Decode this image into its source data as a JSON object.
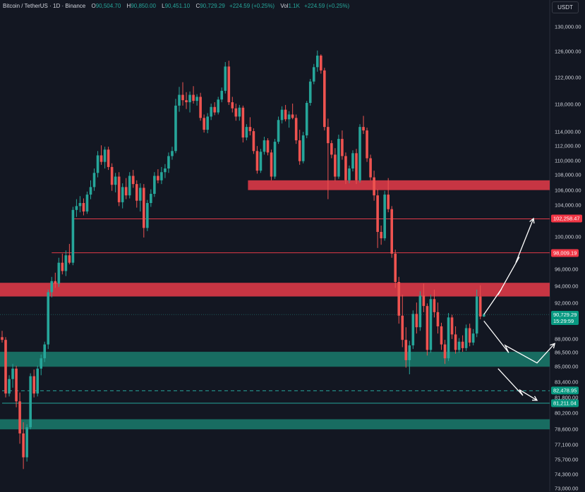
{
  "header": {
    "symbol": "Bitcoin / TetherUS · 1D · Binance",
    "o_label": "O",
    "o_value": "90,504.70",
    "h_label": "H",
    "h_value": "90,850.00",
    "l_label": "L",
    "l_value": "90,451.10",
    "c_label": "C",
    "c_value": "90,729.29",
    "change": "+224.59 (+0.25%)",
    "vol_label": "Vol",
    "vol_value": "1.1K",
    "vol_change": "+224.59 (+0.25%)"
  },
  "currency_button": "USDT",
  "colors": {
    "up": "#26a69a",
    "down": "#ef5350",
    "resistance": "#e03a48",
    "support": "#1b8a77",
    "background": "#131722"
  },
  "chart_data": {
    "type": "candlestick",
    "y_axis": {
      "ticks": [
        {
          "value": 130000,
          "label": "130,000.00"
        },
        {
          "value": 126000,
          "label": "126,000.00"
        },
        {
          "value": 122000,
          "label": "122,000.00"
        },
        {
          "value": 118000,
          "label": "118,000.00"
        },
        {
          "value": 114000,
          "label": "114,000.00"
        },
        {
          "value": 112000,
          "label": "112,000.00"
        },
        {
          "value": 110000,
          "label": "110,000.00"
        },
        {
          "value": 108000,
          "label": "108,000.00"
        },
        {
          "value": 106000,
          "label": "106,000.00"
        },
        {
          "value": 104000,
          "label": "104,000.00"
        },
        {
          "value": 100000,
          "label": "100,000.00"
        },
        {
          "value": 96000,
          "label": "96,000.00"
        },
        {
          "value": 94000,
          "label": "94,000.00"
        },
        {
          "value": 92000,
          "label": "92,000.00"
        },
        {
          "value": 88000,
          "label": "88,000.00"
        },
        {
          "value": 86500,
          "label": "86,500.00"
        },
        {
          "value": 85000,
          "label": "85,000.00"
        },
        {
          "value": 83400,
          "label": "83,400.00"
        },
        {
          "value": 81800,
          "label": "81,800.00"
        },
        {
          "value": 80200,
          "label": "80,200.00"
        },
        {
          "value": 78600,
          "label": "78,600.00"
        },
        {
          "value": 77100,
          "label": "77,100.00"
        },
        {
          "value": 75700,
          "label": "75,700.00"
        },
        {
          "value": 74300,
          "label": "74,300.00"
        },
        {
          "value": 73000,
          "label": "73,000.00"
        }
      ]
    },
    "price_labels": [
      {
        "value": 102258.47,
        "label": "102,258.47",
        "color": "#f23645"
      },
      {
        "value": 98009.19,
        "label": "98,009.19",
        "color": "#f23645"
      },
      {
        "value": 90729.29,
        "label": "90,729.29",
        "sublabel": "15:29:59",
        "color": "#089981"
      },
      {
        "value": 82478.95,
        "label": "82,478.95",
        "color": "#089981"
      },
      {
        "value": 81211.04,
        "label": "81,211.04",
        "color": "#089981"
      }
    ],
    "zones": [
      {
        "kind": "resistance",
        "from_candle": 70,
        "low": 106000,
        "high": 107300
      },
      {
        "kind": "resistance",
        "from_candle": 0,
        "low": 92800,
        "high": 94400
      },
      {
        "kind": "support",
        "from_candle": 0,
        "low": 85000,
        "high": 86600
      },
      {
        "kind": "support",
        "from_candle": 0,
        "low": 78600,
        "high": 79600
      }
    ],
    "horizontal_lines": [
      {
        "value": 102258.47,
        "from_candle": 20,
        "style": "solid",
        "color": "#e03a48"
      },
      {
        "value": 98009.19,
        "from_candle": 14,
        "style": "solid",
        "color": "#e03a48"
      },
      {
        "value": 82478.95,
        "from_candle": 0,
        "style": "dashed",
        "color": "#26a69a"
      },
      {
        "value": 81211.04,
        "from_candle": 0,
        "style": "solid",
        "color": "#26a69a"
      }
    ],
    "projection_paths": [
      [
        [
          136,
          90729
        ],
        [
          141,
          93700
        ],
        [
          140,
          93000
        ],
        [
          146,
          97500
        ],
        [
          145,
          96800
        ],
        [
          150,
          102300
        ]
      ],
      [
        [
          136,
          90000
        ],
        [
          143,
          86500
        ],
        [
          142,
          87300
        ],
        [
          151,
          85400
        ],
        [
          156,
          87500
        ]
      ],
      [
        [
          140,
          84800
        ],
        [
          147,
          82000
        ],
        [
          146,
          82600
        ],
        [
          151,
          81500
        ]
      ]
    ],
    "candles": [
      [
        88200,
        88900,
        87600,
        87900
      ],
      [
        87900,
        88200,
        81800,
        82200
      ],
      [
        82200,
        84100,
        81900,
        83700
      ],
      [
        83700,
        85300,
        82800,
        84800
      ],
      [
        84800,
        85100,
        80800,
        81400
      ],
      [
        81400,
        82300,
        77200,
        78200
      ],
      [
        78200,
        79300,
        74800,
        75900
      ],
      [
        75900,
        79100,
        75500,
        78800
      ],
      [
        78800,
        84300,
        78600,
        84000
      ],
      [
        84000,
        84700,
        81800,
        82200
      ],
      [
        82200,
        85100,
        81900,
        84800
      ],
      [
        84800,
        86300,
        84100,
        85900
      ],
      [
        85900,
        87700,
        85500,
        87400
      ],
      [
        87400,
        93600,
        86900,
        93300
      ],
      [
        93300,
        95100,
        92700,
        94600
      ],
      [
        94600,
        95600,
        93800,
        94300
      ],
      [
        94300,
        97400,
        93900,
        96800
      ],
      [
        96800,
        97900,
        95400,
        95800
      ],
      [
        95800,
        98300,
        95200,
        97700
      ],
      [
        97700,
        99100,
        96600,
        96800
      ],
      [
        96800,
        103800,
        96500,
        103400
      ],
      [
        103400,
        104800,
        102500,
        103900
      ],
      [
        103900,
        105200,
        103100,
        104300
      ],
      [
        104300,
        104900,
        102700,
        103200
      ],
      [
        103200,
        105800,
        102900,
        105400
      ],
      [
        105400,
        107300,
        104800,
        106400
      ],
      [
        106400,
        108900,
        105900,
        108300
      ],
      [
        108300,
        111300,
        107700,
        110700
      ],
      [
        110700,
        112100,
        109400,
        109800
      ],
      [
        109800,
        111900,
        108900,
        111500
      ],
      [
        111500,
        111900,
        108700,
        109100
      ],
      [
        109100,
        109600,
        105900,
        106700
      ],
      [
        106700,
        108300,
        105700,
        107800
      ],
      [
        107800,
        108400,
        103900,
        104400
      ],
      [
        104400,
        106900,
        103600,
        106400
      ],
      [
        106400,
        107600,
        104800,
        105300
      ],
      [
        105300,
        108400,
        104900,
        107900
      ],
      [
        107900,
        108700,
        106300,
        106800
      ],
      [
        106800,
        107300,
        103700,
        104600
      ],
      [
        104600,
        106900,
        103200,
        106300
      ],
      [
        106300,
        106800,
        99900,
        101100
      ],
      [
        101100,
        104700,
        100700,
        104300
      ],
      [
        104300,
        106100,
        103800,
        105500
      ],
      [
        105500,
        108400,
        105100,
        107900
      ],
      [
        107900,
        108800,
        106900,
        107300
      ],
      [
        107300,
        109100,
        106800,
        108400
      ],
      [
        108400,
        109500,
        107600,
        108900
      ],
      [
        108900,
        111100,
        108300,
        110600
      ],
      [
        110600,
        111900,
        110100,
        111300
      ],
      [
        111300,
        118800,
        111000,
        117800
      ],
      [
        117800,
        120600,
        116900,
        119400
      ],
      [
        119400,
        121300,
        117800,
        118600
      ],
      [
        118600,
        119800,
        117300,
        118300
      ],
      [
        118300,
        119900,
        116800,
        119400
      ],
      [
        119400,
        120700,
        118100,
        118500
      ],
      [
        118500,
        119500,
        117800,
        119100
      ],
      [
        119100,
        119700,
        115600,
        116000
      ],
      [
        116000,
        116500,
        113900,
        114300
      ],
      [
        114300,
        116700,
        113800,
        116200
      ],
      [
        116200,
        118100,
        115700,
        117600
      ],
      [
        117600,
        118300,
        116400,
        116800
      ],
      [
        116800,
        119100,
        116500,
        118700
      ],
      [
        118700,
        120500,
        118300,
        120000
      ],
      [
        120000,
        124400,
        119600,
        123700
      ],
      [
        123700,
        124600,
        117900,
        118300
      ],
      [
        118300,
        119100,
        116800,
        117400
      ],
      [
        117400,
        118100,
        115600,
        116200
      ],
      [
        116200,
        117900,
        115600,
        117500
      ],
      [
        117500,
        117800,
        112500,
        113200
      ],
      [
        113200,
        115100,
        112800,
        114700
      ],
      [
        114700,
        116100,
        113500,
        114100
      ],
      [
        114100,
        114500,
        110900,
        111300
      ],
      [
        111300,
        112000,
        108200,
        108600
      ],
      [
        108600,
        111600,
        108300,
        111200
      ],
      [
        111200,
        113300,
        110800,
        112800
      ],
      [
        112800,
        113100,
        110700,
        111100
      ],
      [
        111100,
        111500,
        107300,
        107800
      ],
      [
        107800,
        113000,
        107500,
        112600
      ],
      [
        112600,
        116200,
        112300,
        115700
      ],
      [
        115700,
        117700,
        115200,
        117200
      ],
      [
        117200,
        117900,
        115500,
        115800
      ],
      [
        115800,
        117000,
        114600,
        116500
      ],
      [
        116500,
        118100,
        115800,
        116000
      ],
      [
        116000,
        116500,
        112300,
        112800
      ],
      [
        112800,
        114300,
        109400,
        109900
      ],
      [
        109900,
        114000,
        109600,
        113500
      ],
      [
        113500,
        118500,
        113100,
        118200
      ],
      [
        118200,
        121800,
        117800,
        121400
      ],
      [
        121400,
        124100,
        121000,
        123600
      ],
      [
        123600,
        126200,
        122900,
        125400
      ],
      [
        125400,
        125600,
        122600,
        123100
      ],
      [
        123100,
        123500,
        114200,
        114700
      ],
      [
        114700,
        115900,
        104800,
        112400
      ],
      [
        112400,
        112800,
        110300,
        110800
      ],
      [
        110800,
        111700,
        107200,
        107800
      ],
      [
        107800,
        113600,
        107500,
        113000
      ],
      [
        113000,
        114200,
        110100,
        110600
      ],
      [
        110600,
        111100,
        106800,
        107300
      ],
      [
        107300,
        109300,
        106900,
        108900
      ],
      [
        108900,
        111400,
        108500,
        111000
      ],
      [
        111000,
        111600,
        106800,
        107300
      ],
      [
        107300,
        115100,
        107000,
        114700
      ],
      [
        114700,
        116300,
        113700,
        114200
      ],
      [
        114200,
        114600,
        109800,
        110300
      ],
      [
        110300,
        110800,
        107300,
        107700
      ],
      [
        107700,
        108600,
        104600,
        105300
      ],
      [
        105300,
        106100,
        98600,
        100600
      ],
      [
        100600,
        101400,
        99000,
        99800
      ],
      [
        99800,
        105900,
        99500,
        105400
      ],
      [
        105400,
        107600,
        103100,
        103500
      ],
      [
        103500,
        103900,
        97400,
        97900
      ],
      [
        97900,
        98400,
        93800,
        94500
      ],
      [
        94500,
        95100,
        89700,
        90600
      ],
      [
        90600,
        93000,
        87100,
        87900
      ],
      [
        87900,
        89300,
        84900,
        85700
      ],
      [
        85700,
        87800,
        84200,
        87300
      ],
      [
        87300,
        91200,
        86900,
        90800
      ],
      [
        90800,
        92100,
        88600,
        89300
      ],
      [
        89300,
        93400,
        88900,
        92900
      ],
      [
        92900,
        94300,
        91000,
        91700
      ],
      [
        91700,
        92000,
        86200,
        86800
      ],
      [
        86800,
        93000,
        86500,
        92500
      ],
      [
        92500,
        93600,
        90400,
        91000
      ],
      [
        91000,
        92100,
        88600,
        89400
      ],
      [
        89400,
        89800,
        86800,
        87400
      ],
      [
        87400,
        87900,
        85300,
        85900
      ],
      [
        85900,
        90900,
        85600,
        90400
      ],
      [
        90400,
        90700,
        88000,
        88500
      ],
      [
        88500,
        89400,
        86400,
        86800
      ],
      [
        86800,
        88100,
        86500,
        87700
      ],
      [
        87700,
        88400,
        86600,
        87000
      ],
      [
        87000,
        89600,
        86700,
        89200
      ],
      [
        89200,
        89700,
        87200,
        87600
      ],
      [
        87600,
        89100,
        87300,
        88600
      ],
      [
        88600,
        93600,
        88200,
        92800
      ],
      [
        92800,
        94100,
        90200,
        90504.7
      ],
      [
        90504.7,
        90850,
        90451.1,
        90729.29
      ]
    ]
  }
}
